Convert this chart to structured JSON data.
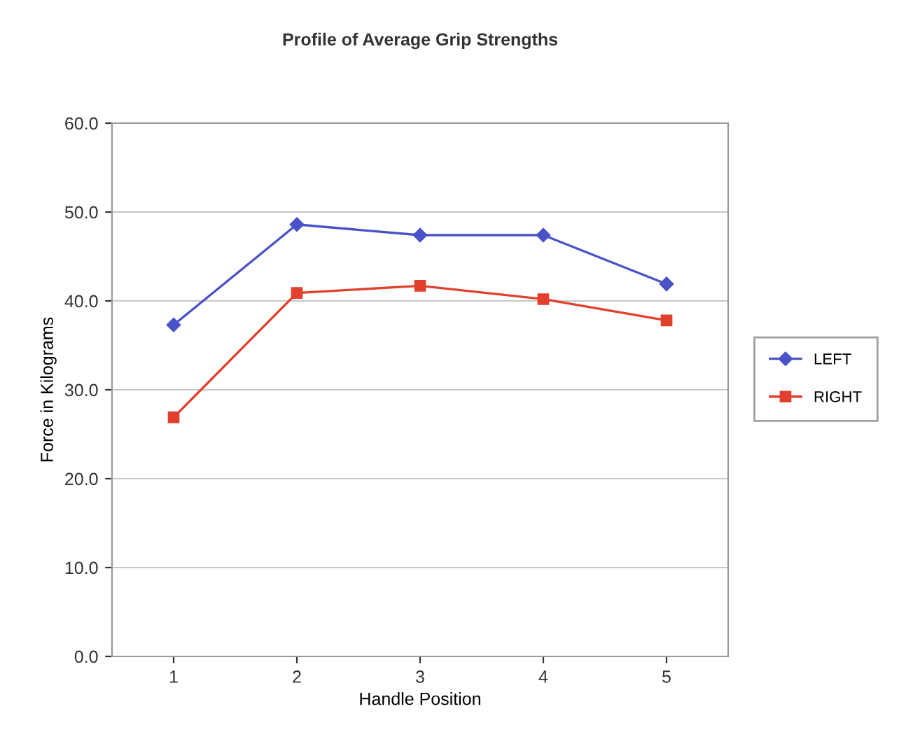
{
  "chart_data": {
    "type": "line",
    "title": "Profile of Average Grip Strengths",
    "xlabel": "Handle Position",
    "ylabel": "Force in Kilograms",
    "categories": [
      "1",
      "2",
      "3",
      "4",
      "5"
    ],
    "series": [
      {
        "name": "LEFT",
        "color": "#4a52c8",
        "marker": "diamond",
        "values": [
          37.3,
          48.6,
          47.4,
          47.4,
          41.9
        ]
      },
      {
        "name": "RIGHT",
        "color": "#e0402c",
        "marker": "square",
        "values": [
          26.9,
          40.9,
          41.7,
          40.2,
          37.8
        ]
      }
    ],
    "ylim": [
      0,
      60
    ],
    "yticks": [
      {
        "value": 0,
        "label": "0.0"
      },
      {
        "value": 10,
        "label": "10.0"
      },
      {
        "value": 20,
        "label": "20.0"
      },
      {
        "value": 30,
        "label": "30.0"
      },
      {
        "value": 40,
        "label": "40.0"
      },
      {
        "value": 50,
        "label": "50.0"
      },
      {
        "value": 60,
        "label": "60.0"
      }
    ],
    "grid": "y",
    "legend": "right",
    "line_style": "solid"
  }
}
